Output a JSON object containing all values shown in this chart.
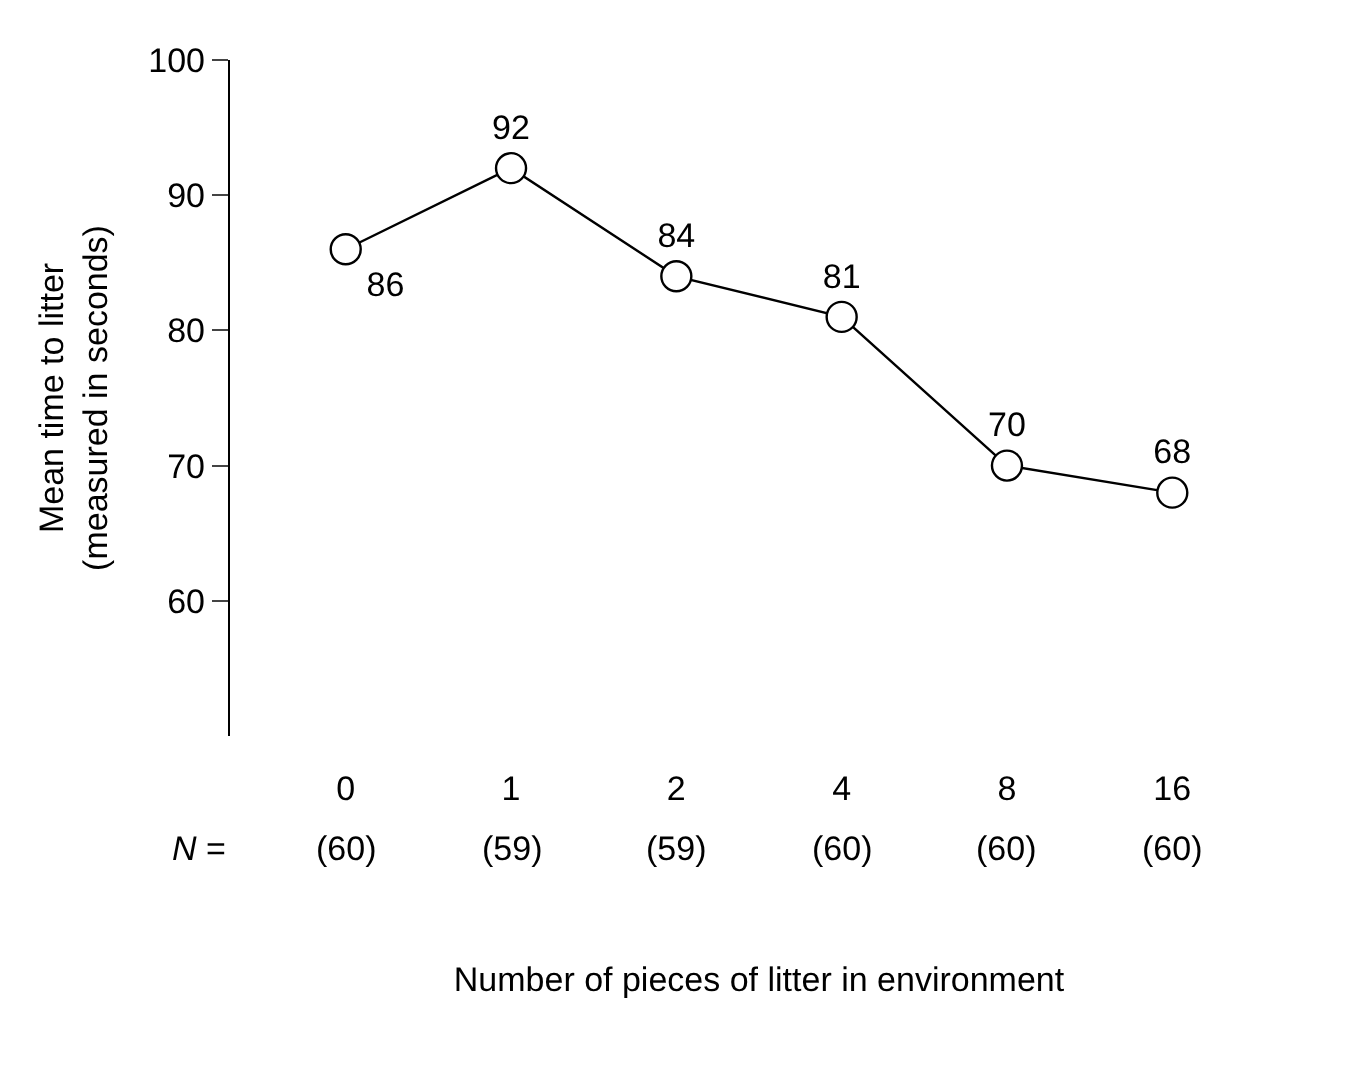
{
  "chart_data": {
    "type": "line",
    "categories": [
      "0",
      "1",
      "2",
      "4",
      "8",
      "16"
    ],
    "series": [
      {
        "color": "#000000",
        "values": [
          86,
          92,
          84,
          81,
          70,
          68
        ]
      }
    ],
    "ylabel": "Mean time to litter\n(measured in seconds)",
    "xlabel": "Number of pieces of litter in environment",
    "ylim": [
      50,
      100
    ],
    "yticks": [
      60,
      70,
      80,
      90,
      100
    ],
    "data_labels": true,
    "marker": "circle",
    "line_style": "solid",
    "annotations": [
      "N =",
      "(60)",
      "(59)",
      "(59)",
      "(60)",
      "(60)",
      "(60)"
    ]
  }
}
